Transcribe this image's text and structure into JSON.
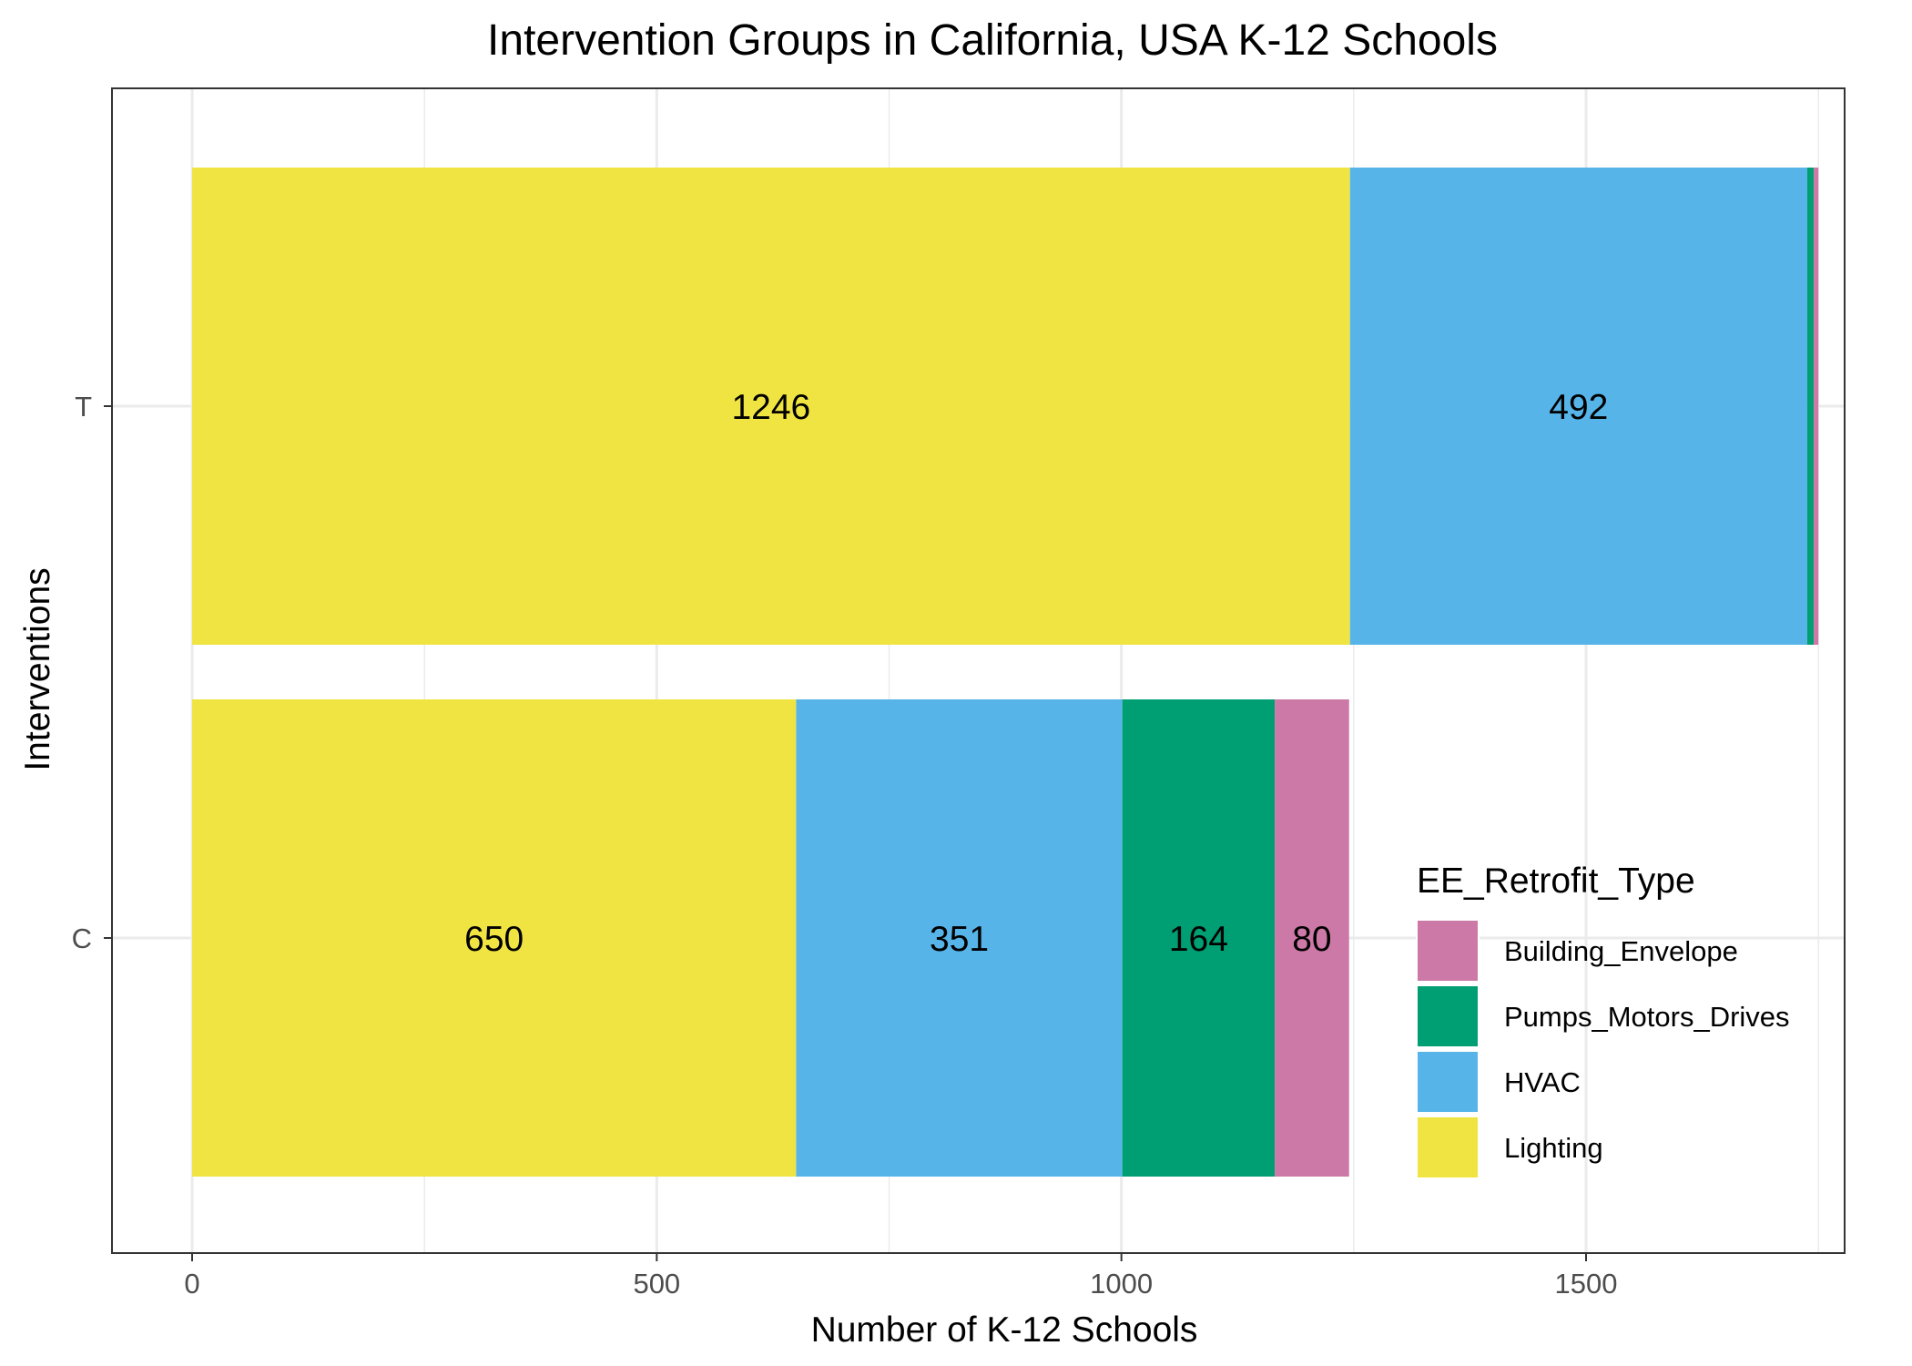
{
  "chart_data": {
    "type": "bar",
    "orientation": "horizontal",
    "stacked": true,
    "title": "Intervention Groups in California, USA K-12 Schools",
    "xlabel": "Number of K-12 Schools",
    "ylabel": "Interventions",
    "categories": [
      "T",
      "C"
    ],
    "xlim": [
      0,
      1850
    ],
    "xticks": [
      0,
      500,
      1000,
      1500
    ],
    "grid": true,
    "legend": {
      "title": "EE_Retrofit_Type",
      "position": "bottom-right inside",
      "entries": [
        "Building_Envelope",
        "Pumps_Motors_Drives",
        "HVAC",
        "Lighting"
      ]
    },
    "series": [
      {
        "name": "Lighting",
        "color": "#F0E442",
        "values": [
          1246,
          650
        ],
        "labels": [
          "1246",
          "650"
        ]
      },
      {
        "name": "HVAC",
        "color": "#56B4E9",
        "values": [
          492,
          351
        ],
        "labels": [
          "492",
          "351"
        ]
      },
      {
        "name": "Pumps_Motors_Drives",
        "color": "#009E73",
        "values": [
          7,
          164
        ],
        "labels": [
          "",
          "164"
        ]
      },
      {
        "name": "Building_Envelope",
        "color": "#CC79A7",
        "values": [
          5,
          80
        ],
        "labels": [
          "",
          "80"
        ]
      }
    ]
  }
}
